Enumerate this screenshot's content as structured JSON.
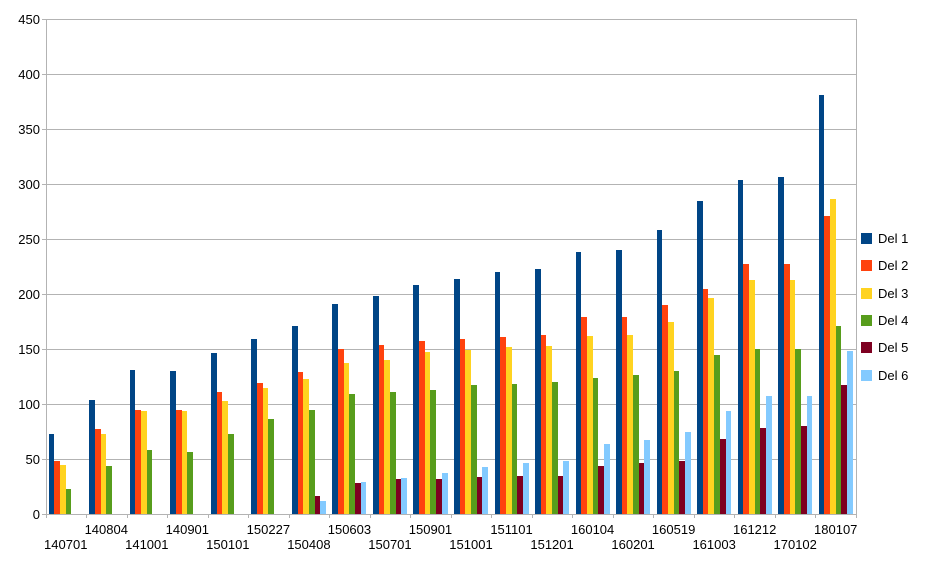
{
  "chart_data": {
    "type": "bar",
    "title": "",
    "xlabel": "",
    "ylabel": "",
    "grid": "horizontal",
    "background_color": "#ffffff",
    "grid_color": "#b3b3b3",
    "text_color": "#000000",
    "legend_position": "right",
    "x_axis": {
      "staggered_labels": true
    },
    "y_axis": {
      "min": 0,
      "max": 450,
      "step": 50,
      "tick_labels": [
        "0",
        "50",
        "100",
        "150",
        "200",
        "250",
        "300",
        "350",
        "400",
        "450"
      ]
    },
    "categories": [
      "140701",
      "140804",
      "141001",
      "140901",
      "150101",
      "150227",
      "150408",
      "150603",
      "150701",
      "150901",
      "151001",
      "151101",
      "151201",
      "160104",
      "160201",
      "160519",
      "161003",
      "161212",
      "170102",
      "180107"
    ],
    "series": [
      {
        "name": "Del 1",
        "color": "#004586",
        "values": [
          73,
          104,
          131,
          130,
          146,
          159,
          171,
          191,
          198,
          208,
          214,
          220,
          223,
          238,
          240,
          258,
          285,
          304,
          306,
          381
        ]
      },
      {
        "name": "Del 2",
        "color": "#ff420e",
        "values": [
          48,
          77,
          95,
          95,
          111,
          119,
          129,
          150,
          154,
          157,
          159,
          161,
          163,
          179,
          179,
          190,
          205,
          227,
          227,
          271
        ]
      },
      {
        "name": "Del 3",
        "color": "#ffd320",
        "values": [
          45,
          73,
          94,
          94,
          103,
          115,
          123,
          137,
          140,
          147,
          149,
          152,
          153,
          162,
          163,
          175,
          196,
          213,
          213,
          286
        ]
      },
      {
        "name": "Del 4",
        "color": "#579d1c",
        "values": [
          23,
          44,
          58,
          56,
          73,
          86,
          95,
          109,
          111,
          113,
          117,
          118,
          120,
          124,
          126,
          130,
          145,
          150,
          150,
          171
        ]
      },
      {
        "name": "Del 5",
        "color": "#7e0021",
        "values": [
          0,
          0,
          0,
          0,
          0,
          0,
          16,
          28,
          32,
          32,
          34,
          35,
          35,
          44,
          46,
          48,
          68,
          78,
          80,
          117
        ]
      },
      {
        "name": "Del 6",
        "color": "#83caff",
        "values": [
          0,
          0,
          0,
          0,
          0,
          0,
          12,
          29,
          33,
          37,
          43,
          46,
          48,
          64,
          67,
          75,
          94,
          107,
          107,
          148
        ]
      }
    ],
    "legend_entries": [
      "Del 1",
      "Del 2",
      "Del 3",
      "Del 4",
      "Del 5",
      "Del 6"
    ]
  }
}
